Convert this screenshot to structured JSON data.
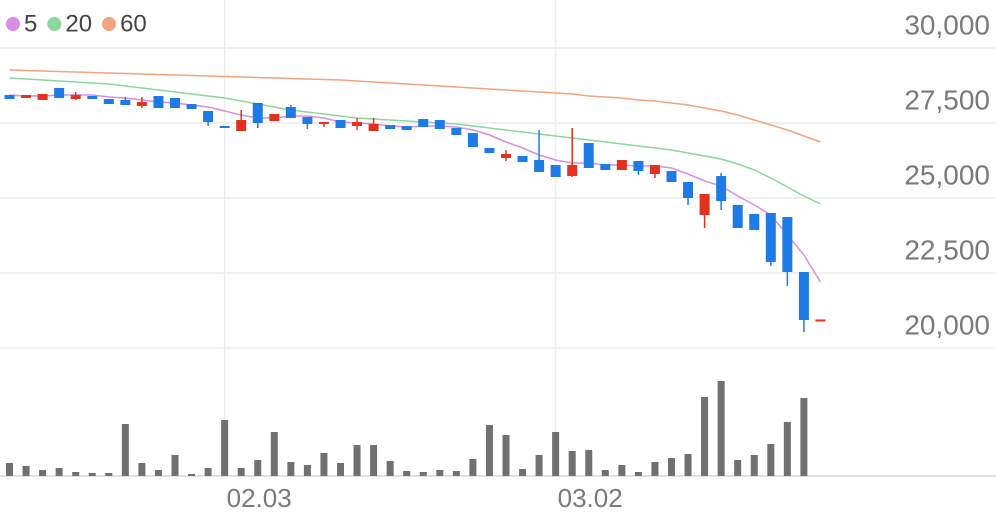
{
  "chart_data": {
    "type": "candlestick",
    "legend_position": "top-left",
    "grid": true,
    "up_color": "#e0321e",
    "down_color": "#1e7be6",
    "volume_color": "#707070",
    "categories": [
      null,
      null,
      null,
      null,
      null,
      null,
      null,
      null,
      null,
      null,
      null,
      null,
      null,
      "02.03",
      null,
      null,
      null,
      null,
      null,
      null,
      null,
      null,
      null,
      null,
      null,
      null,
      null,
      null,
      null,
      null,
      null,
      null,
      null,
      "03.02",
      null,
      null,
      null,
      null,
      null,
      null,
      null,
      null,
      null,
      null,
      null,
      null,
      null,
      null,
      null,
      null
    ],
    "ylim": [
      20000,
      30000
    ],
    "yticks": [
      {
        "value": 20000,
        "label": "20,000"
      },
      {
        "value": 22500,
        "label": "22,500"
      },
      {
        "value": 25000,
        "label": "25,000"
      },
      {
        "value": 27500,
        "label": "27,500"
      },
      {
        "value": 30000,
        "label": "30,000"
      }
    ],
    "open": [
      28433,
      28333,
      28267,
      28667,
      28300,
      28400,
      28300,
      28267,
      28067,
      28400,
      28333,
      28133,
      27900,
      27400,
      27233,
      28167,
      27567,
      28033,
      27700,
      27467,
      27600,
      27400,
      27233,
      27433,
      27400,
      27633,
      27600,
      27333,
      27167,
      26667,
      26333,
      26400,
      26267,
      26100,
      25733,
      26833,
      26133,
      25933,
      26233,
      25800,
      25900,
      25533,
      24433,
      25733,
      24767,
      24467,
      24500,
      24367,
      22533,
      20950
    ],
    "high": [
      28433,
      28433,
      28467,
      28667,
      28533,
      28400,
      28300,
      28367,
      28367,
      28400,
      28333,
      28133,
      27900,
      27400,
      27933,
      28167,
      27800,
      28100,
      27700,
      27533,
      27600,
      27667,
      27667,
      27433,
      27400,
      27633,
      27600,
      27333,
      27167,
      26667,
      26600,
      26400,
      27267,
      26100,
      27333,
      26833,
      26133,
      26267,
      26233,
      26100,
      25900,
      25533,
      25133,
      25833,
      24767,
      24467,
      24500,
      24367,
      22533,
      20950
    ],
    "low": [
      28300,
      28333,
      28267,
      28333,
      28267,
      28300,
      28133,
      28100,
      28000,
      28000,
      28000,
      27967,
      27400,
      27333,
      27233,
      27333,
      27567,
      27667,
      27300,
      27367,
      27333,
      27267,
      27233,
      27300,
      27267,
      27367,
      27300,
      27100,
      26700,
      26500,
      26233,
      26200,
      25867,
      25700,
      25700,
      26000,
      25933,
      25933,
      25767,
      25667,
      25533,
      24767,
      24000,
      24600,
      24000,
      23933,
      22733,
      22067,
      20533,
      20950
    ],
    "close": [
      28300,
      28433,
      28467,
      28333,
      28433,
      28300,
      28133,
      28100,
      28200,
      28000,
      28000,
      27967,
      27533,
      27333,
      27600,
      27500,
      27800,
      27667,
      27467,
      27533,
      27333,
      27533,
      27467,
      27300,
      27267,
      27367,
      27300,
      27100,
      26700,
      26500,
      26467,
      26200,
      25867,
      25700,
      26100,
      26000,
      25933,
      26267,
      25900,
      26100,
      25533,
      25000,
      25133,
      24900,
      24000,
      23933,
      22867,
      22533,
      20933,
      20950
    ],
    "volume": [
      13,
      10,
      6,
      8,
      4,
      3,
      3,
      52,
      13,
      6,
      21,
      2,
      8,
      56,
      8,
      16,
      44,
      14,
      11,
      23,
      13,
      31,
      31,
      15,
      5,
      4,
      6,
      5,
      17,
      51,
      41,
      7,
      21,
      44,
      25,
      26,
      6,
      11,
      4,
      14,
      18,
      22,
      79,
      95,
      16,
      21,
      32,
      54,
      78,
      0
    ],
    "series": [
      {
        "name": "5",
        "color": "#d68fe2",
        "values": [
          28433,
          28400,
          28400,
          28433,
          28433,
          28433,
          28367,
          28333,
          28267,
          28200,
          28167,
          28100,
          28033,
          27900,
          27767,
          27667,
          27667,
          27733,
          27733,
          27667,
          27533,
          27500,
          27467,
          27400,
          27367,
          27400,
          27400,
          27367,
          27267,
          27100,
          26867,
          26667,
          26433,
          26267,
          26167,
          26167,
          26100,
          26100,
          26067,
          26067,
          26000,
          25800,
          25567,
          25400,
          25067,
          24767,
          24433,
          23767,
          23100,
          22200
        ]
      },
      {
        "name": "20",
        "color": "#8ad69c",
        "values": [
          29000,
          28967,
          28933,
          28900,
          28867,
          28833,
          28800,
          28733,
          28667,
          28600,
          28533,
          28467,
          28400,
          28333,
          28233,
          28133,
          28033,
          27933,
          27867,
          27800,
          27733,
          27667,
          27633,
          27600,
          27567,
          27533,
          27500,
          27467,
          27400,
          27333,
          27267,
          27200,
          27133,
          27067,
          27000,
          26933,
          26867,
          26800,
          26733,
          26667,
          26600,
          26500,
          26400,
          26300,
          26133,
          25933,
          25667,
          25367,
          25067,
          24800
        ]
      },
      {
        "name": "60",
        "color": "#f2a47e",
        "values": [
          29267,
          29250,
          29233,
          29217,
          29200,
          29183,
          29167,
          29150,
          29133,
          29117,
          29100,
          29083,
          29067,
          29050,
          29033,
          29017,
          29000,
          28983,
          28967,
          28950,
          28933,
          28900,
          28867,
          28833,
          28800,
          28767,
          28733,
          28700,
          28667,
          28633,
          28600,
          28567,
          28533,
          28500,
          28467,
          28400,
          28367,
          28333,
          28267,
          28233,
          28167,
          28100,
          28000,
          27900,
          27767,
          27600,
          27433,
          27267,
          27067,
          26867
        ]
      }
    ]
  }
}
